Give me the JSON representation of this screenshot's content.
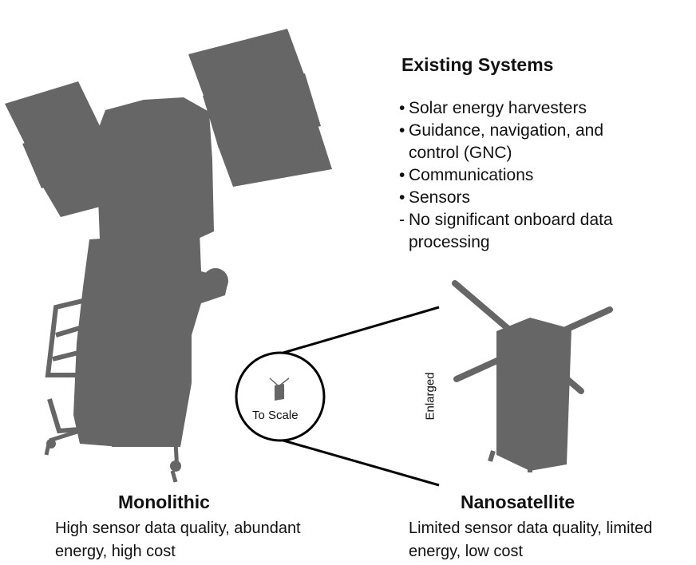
{
  "systems_panel": {
    "title": "Existing Systems",
    "items": [
      {
        "marker": "•",
        "text": "Solar energy harvesters"
      },
      {
        "marker": "•",
        "text": "Guidance, navigation, and control (GNC)"
      },
      {
        "marker": "•",
        "text": "Communications"
      },
      {
        "marker": "•",
        "text": "Sensors"
      },
      {
        "marker": "-",
        "text": "No significant onboard data processing"
      }
    ]
  },
  "monolithic": {
    "title": "Monolithic",
    "description": "High sensor data quality, abundant energy, high cost"
  },
  "nanosatellite": {
    "title": "Nanosatellite",
    "description": "Limited sensor data quality, limited energy, low cost",
    "to_scale_label": "To Scale",
    "enlarged_label": "Enlarged"
  },
  "colors": {
    "silhouette": "#666666",
    "lines": "#000000",
    "text": "#111111"
  }
}
